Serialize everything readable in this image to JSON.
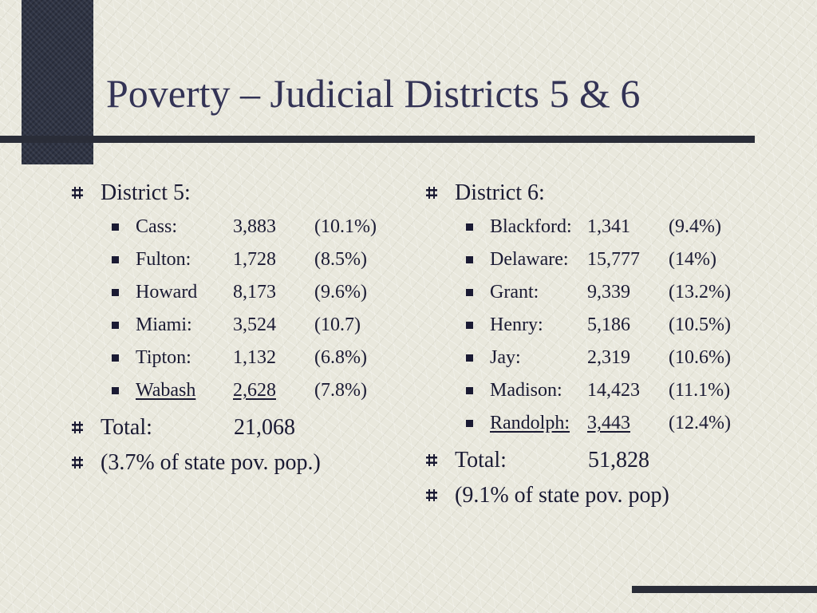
{
  "title": "Poverty – Judicial Districts 5 & 6",
  "district5": {
    "heading": "District 5:",
    "counties": [
      {
        "name": "Cass:",
        "count": "3,883",
        "pct": "(10.1%)"
      },
      {
        "name": "Fulton:",
        "count": "1,728",
        "pct": "(8.5%)"
      },
      {
        "name": "Howard",
        "count": "8,173",
        "pct": "(9.6%)"
      },
      {
        "name": "Miami:",
        "count": "3,524",
        "pct": "(10.7)"
      },
      {
        "name": "Tipton:",
        "count": "1,132",
        "pct": "(6.8%)"
      },
      {
        "name": "Wabash",
        "count": "2,628",
        "pct": "(7.8%)"
      }
    ],
    "total_label": "Total:",
    "total_value": "21,068",
    "share": "(3.7% of state pov. pop.)"
  },
  "district6": {
    "heading": "District 6:",
    "counties": [
      {
        "name": "Blackford:",
        "count": "1,341",
        "pct": "(9.4%)"
      },
      {
        "name": "Delaware:",
        "count": "15,777",
        "pct": "(14%)"
      },
      {
        "name": "Grant:",
        "count": "9,339",
        "pct": "(13.2%)"
      },
      {
        "name": "Henry:",
        "count": "5,186",
        "pct": "(10.5%)"
      },
      {
        "name": "Jay:",
        "count": "2,319",
        "pct": "(10.6%)"
      },
      {
        "name": "Madison:",
        "count": "14,423",
        "pct": "(11.1%)"
      },
      {
        "name": "Randolph:",
        "count": "3,443",
        "pct": "(12.4%)"
      }
    ],
    "total_label": "Total:",
    "total_value": "51,828",
    "share": "(9.1% of state pov. pop)"
  },
  "colors": {
    "background": "#e9e8dd",
    "text": "#1a1a33",
    "title": "#333355",
    "accent_bar": "#2a2d38"
  },
  "icons": {
    "level1_bullet": "hash-bullet-icon",
    "level2_bullet": "square-bullet-icon"
  }
}
